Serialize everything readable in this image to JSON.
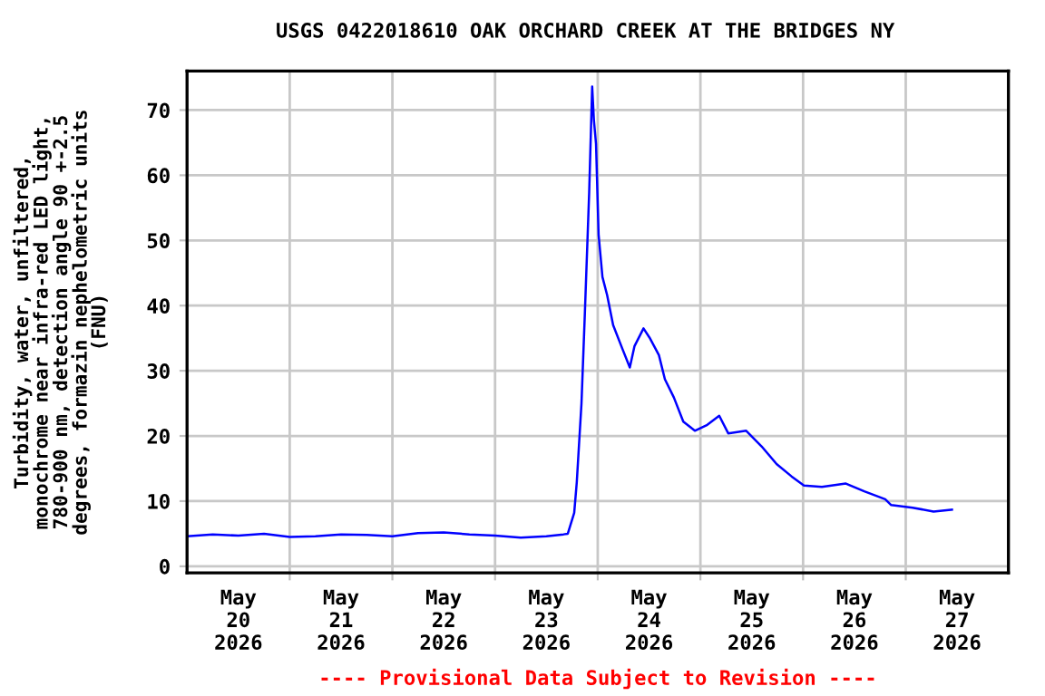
{
  "chart_data": {
    "type": "line",
    "title": "USGS 0422018610 OAK ORCHARD CREEK AT THE BRIDGES NY",
    "ylabel": "Turbidity, water, unfiltered,\nmonochrome near infra-red LED light,\n780-900 nm, detection angle 90 +-2.5\ndegrees, formazin nephelometric units\n(FNU)",
    "annotations": [
      "---- Provisional Data Subject to Revision ----"
    ],
    "x": [
      "2026-05-20T00:00",
      "2026-05-20T06:00",
      "2026-05-20T12:00",
      "2026-05-20T18:00",
      "2026-05-21T00:00",
      "2026-05-21T06:00",
      "2026-05-21T12:00",
      "2026-05-21T18:00",
      "2026-05-22T00:00",
      "2026-05-22T06:00",
      "2026-05-22T12:00",
      "2026-05-22T18:00",
      "2026-05-23T00:00",
      "2026-05-23T06:00",
      "2026-05-23T12:00",
      "2026-05-23T16:00",
      "2026-05-23T17:00",
      "2026-05-23T18:30",
      "2026-05-23T19:06",
      "2026-05-23T20:12",
      "2026-05-23T21:00",
      "2026-05-23T22:00",
      "2026-05-23T22:42",
      "2026-05-23T23:06",
      "2026-05-23T23:36",
      "2026-05-24T00:12",
      "2026-05-24T01:06",
      "2026-05-24T02:12",
      "2026-05-24T03:36",
      "2026-05-24T05:48",
      "2026-05-24T07:30",
      "2026-05-24T08:36",
      "2026-05-24T10:42",
      "2026-05-24T12:06",
      "2026-05-24T14:18",
      "2026-05-24T15:42",
      "2026-05-24T17:48",
      "2026-05-24T20:00",
      "2026-05-24T22:42",
      "2026-05-25T01:36",
      "2026-05-25T04:24",
      "2026-05-25T06:30",
      "2026-05-25T10:42",
      "2026-05-25T14:18",
      "2026-05-25T17:48",
      "2026-05-25T21:18",
      "2026-05-26T00:12",
      "2026-05-26T04:24",
      "2026-05-26T10:00",
      "2026-05-26T14:18",
      "2026-05-26T19:12",
      "2026-05-26T20:36",
      "2026-05-27T01:36",
      "2026-05-27T06:30",
      "2026-05-27T10:48"
    ],
    "series": [
      {
        "color": "#0000ff",
        "values": [
          4.6,
          4.9,
          4.7,
          5.0,
          4.5,
          4.6,
          4.9,
          4.8,
          4.6,
          5.1,
          5.2,
          4.9,
          4.7,
          4.4,
          4.6,
          4.9,
          5.0,
          8.2,
          12.9,
          25,
          39,
          57.4,
          73.6,
          68.5,
          64.8,
          50.9,
          44.4,
          41.6,
          37,
          33.3,
          30.5,
          33.8,
          36.5,
          35.1,
          32.4,
          28.7,
          25.9,
          22.2,
          20.8,
          21.7,
          23.1,
          20.4,
          20.8,
          18.4,
          15.7,
          13.8,
          12.4,
          12.2,
          12.7,
          11.5,
          10.3,
          9.4,
          9.0,
          8.4,
          8.7
        ]
      }
    ],
    "xlim": [
      "2026-05-20T00:00",
      "2026-05-28T00:00"
    ],
    "xticks": [
      {
        "value": "2026-05-20T12:00",
        "label": "May\n20\n2026"
      },
      {
        "value": "2026-05-21T00:00",
        "label": null
      },
      {
        "value": "2026-05-21T12:00",
        "label": "May\n21\n2026"
      },
      {
        "value": "2026-05-22T00:00",
        "label": null
      },
      {
        "value": "2026-05-22T12:00",
        "label": "May\n22\n2026"
      },
      {
        "value": "2026-05-23T00:00",
        "label": null
      },
      {
        "value": "2026-05-23T12:00",
        "label": "May\n23\n2026"
      },
      {
        "value": "2026-05-24T00:00",
        "label": null
      },
      {
        "value": "2026-05-24T12:00",
        "label": "May\n24\n2026"
      },
      {
        "value": "2026-05-25T00:00",
        "label": null
      },
      {
        "value": "2026-05-25T12:00",
        "label": "May\n25\n2026"
      },
      {
        "value": "2026-05-26T00:00",
        "label": null
      },
      {
        "value": "2026-05-26T12:00",
        "label": "May\n26\n2026"
      },
      {
        "value": "2026-05-27T00:00",
        "label": null
      },
      {
        "value": "2026-05-27T12:00",
        "label": "May\n27\n2026"
      }
    ],
    "ylim": [
      -1,
      76
    ],
    "yticks": [
      0,
      10,
      20,
      30,
      40,
      50,
      60,
      70
    ],
    "grid": true,
    "legend": false
  }
}
